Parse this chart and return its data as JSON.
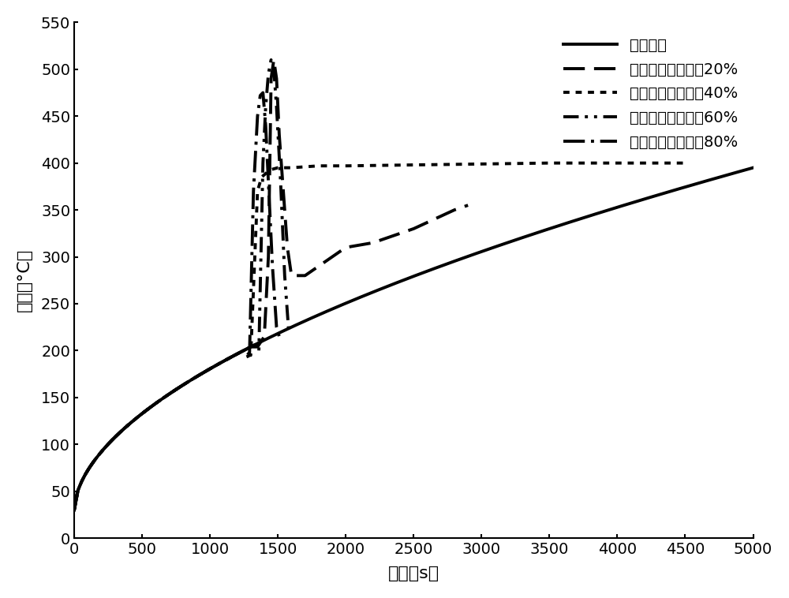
{
  "title": "",
  "xlabel": "时间（s）",
  "ylabel": "温度（°C）",
  "xlim": [
    0,
    5000
  ],
  "ylim": [
    0,
    550
  ],
  "xticks": [
    0,
    500,
    1000,
    1500,
    2000,
    2500,
    3000,
    3500,
    4000,
    4500,
    5000
  ],
  "yticks": [
    0,
    50,
    100,
    150,
    200,
    250,
    300,
    350,
    400,
    450,
    500,
    550
  ],
  "legend_labels": [
    "空白电池",
    "锂离子电池容量的20%",
    "锂离子电池容量的40%",
    "锂离子电池容量的60%",
    "锂离子电池容量的80%"
  ],
  "background_color": "#ffffff",
  "line_color": "#000000"
}
